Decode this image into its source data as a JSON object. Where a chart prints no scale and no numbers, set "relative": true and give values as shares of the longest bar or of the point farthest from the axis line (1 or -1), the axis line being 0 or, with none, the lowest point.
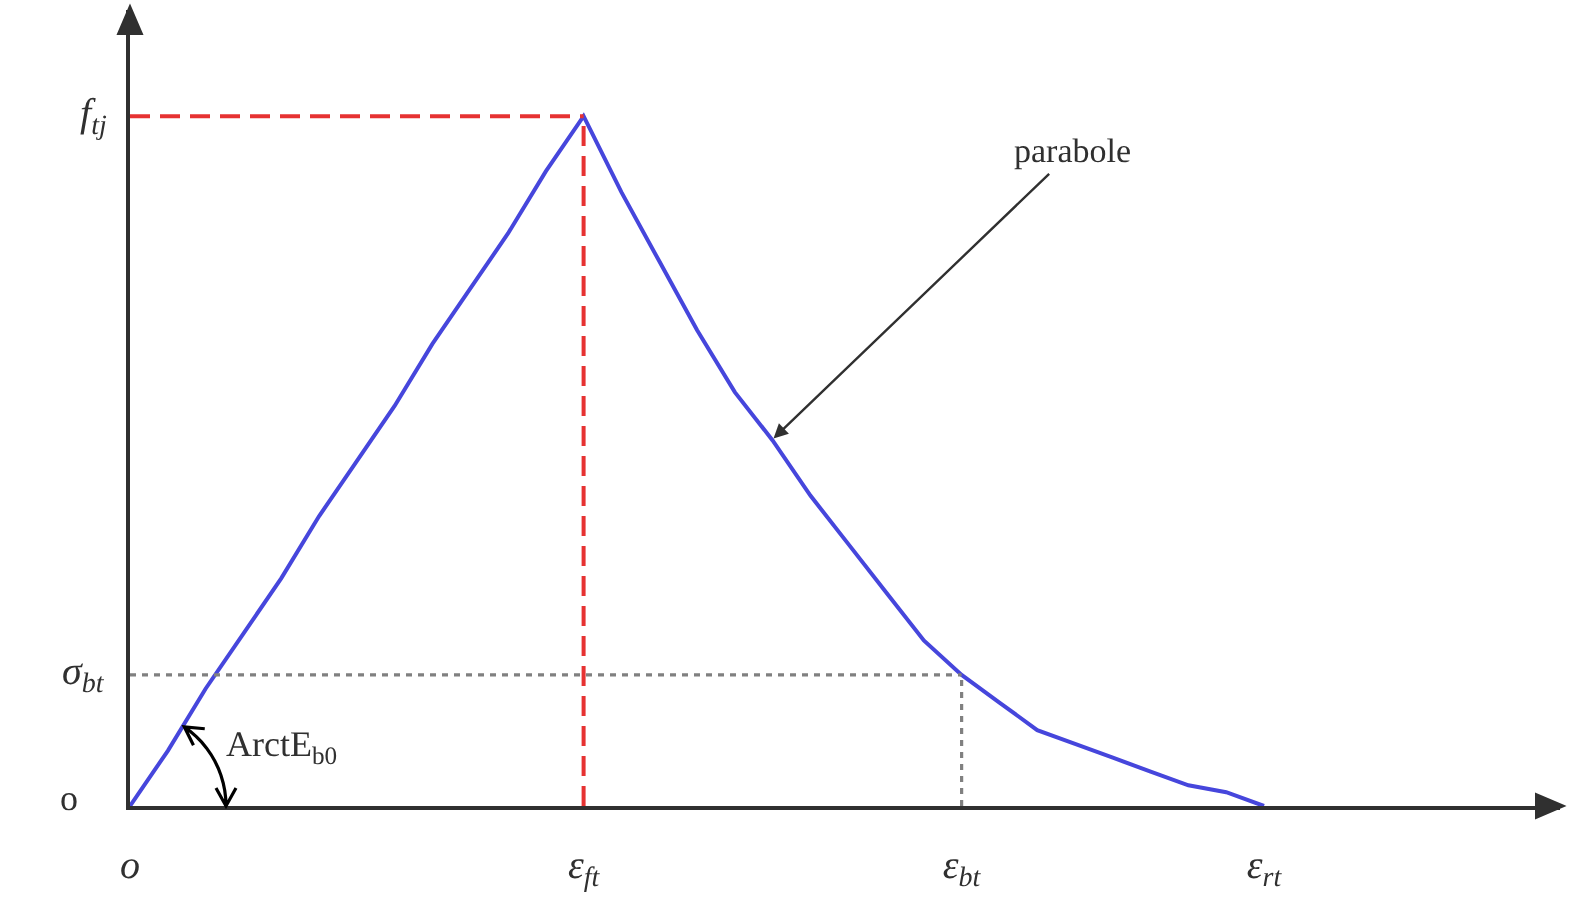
{
  "chart_data": {
    "type": "line",
    "relative": true,
    "categories": [
      "o",
      null,
      null,
      null,
      null,
      null,
      null,
      null,
      null,
      null,
      null,
      null,
      "ε$_{ft}$",
      null,
      null,
      null,
      null,
      null,
      null,
      null,
      null,
      null,
      "ε$_{bt}$",
      null,
      null,
      null,
      null,
      null,
      null,
      null,
      "ε$_{rt}$"
    ],
    "series": [
      {
        "color": "#4646dc",
        "values": [
          0,
          0.08,
          0.17,
          0.25,
          0.33,
          0.42,
          0.5,
          0.58,
          0.67,
          0.75,
          0.83,
          0.92,
          1,
          0.89,
          0.79,
          0.69,
          0.6,
          0.53,
          0.45,
          0.38,
          0.31,
          0.24,
          0.19,
          0.15,
          0.11,
          0.09,
          0.07,
          0.05,
          0.03,
          0.02,
          0
        ]
      }
    ],
    "ref_lines": [
      {
        "axis": "y",
        "value": 1,
        "label": "f$_{tj}$",
        "color": "#e63232",
        "line_style": "dashed"
      },
      {
        "axis": "x",
        "value": "ε$_{ft}$",
        "color": "#e63232",
        "line_style": "dashed"
      },
      {
        "axis": "y",
        "value": 0.19,
        "label": "σ$_{bt}$",
        "color": "#808080",
        "line_style": "dotted"
      },
      {
        "axis": "x",
        "value": "ε$_{bt}$",
        "color": "#808080",
        "line_style": "dotted"
      }
    ],
    "annotations": [
      "parabole",
      "o",
      "ArctE$_{b0}$"
    ],
    "marker": "none",
    "line_style": "solid"
  }
}
